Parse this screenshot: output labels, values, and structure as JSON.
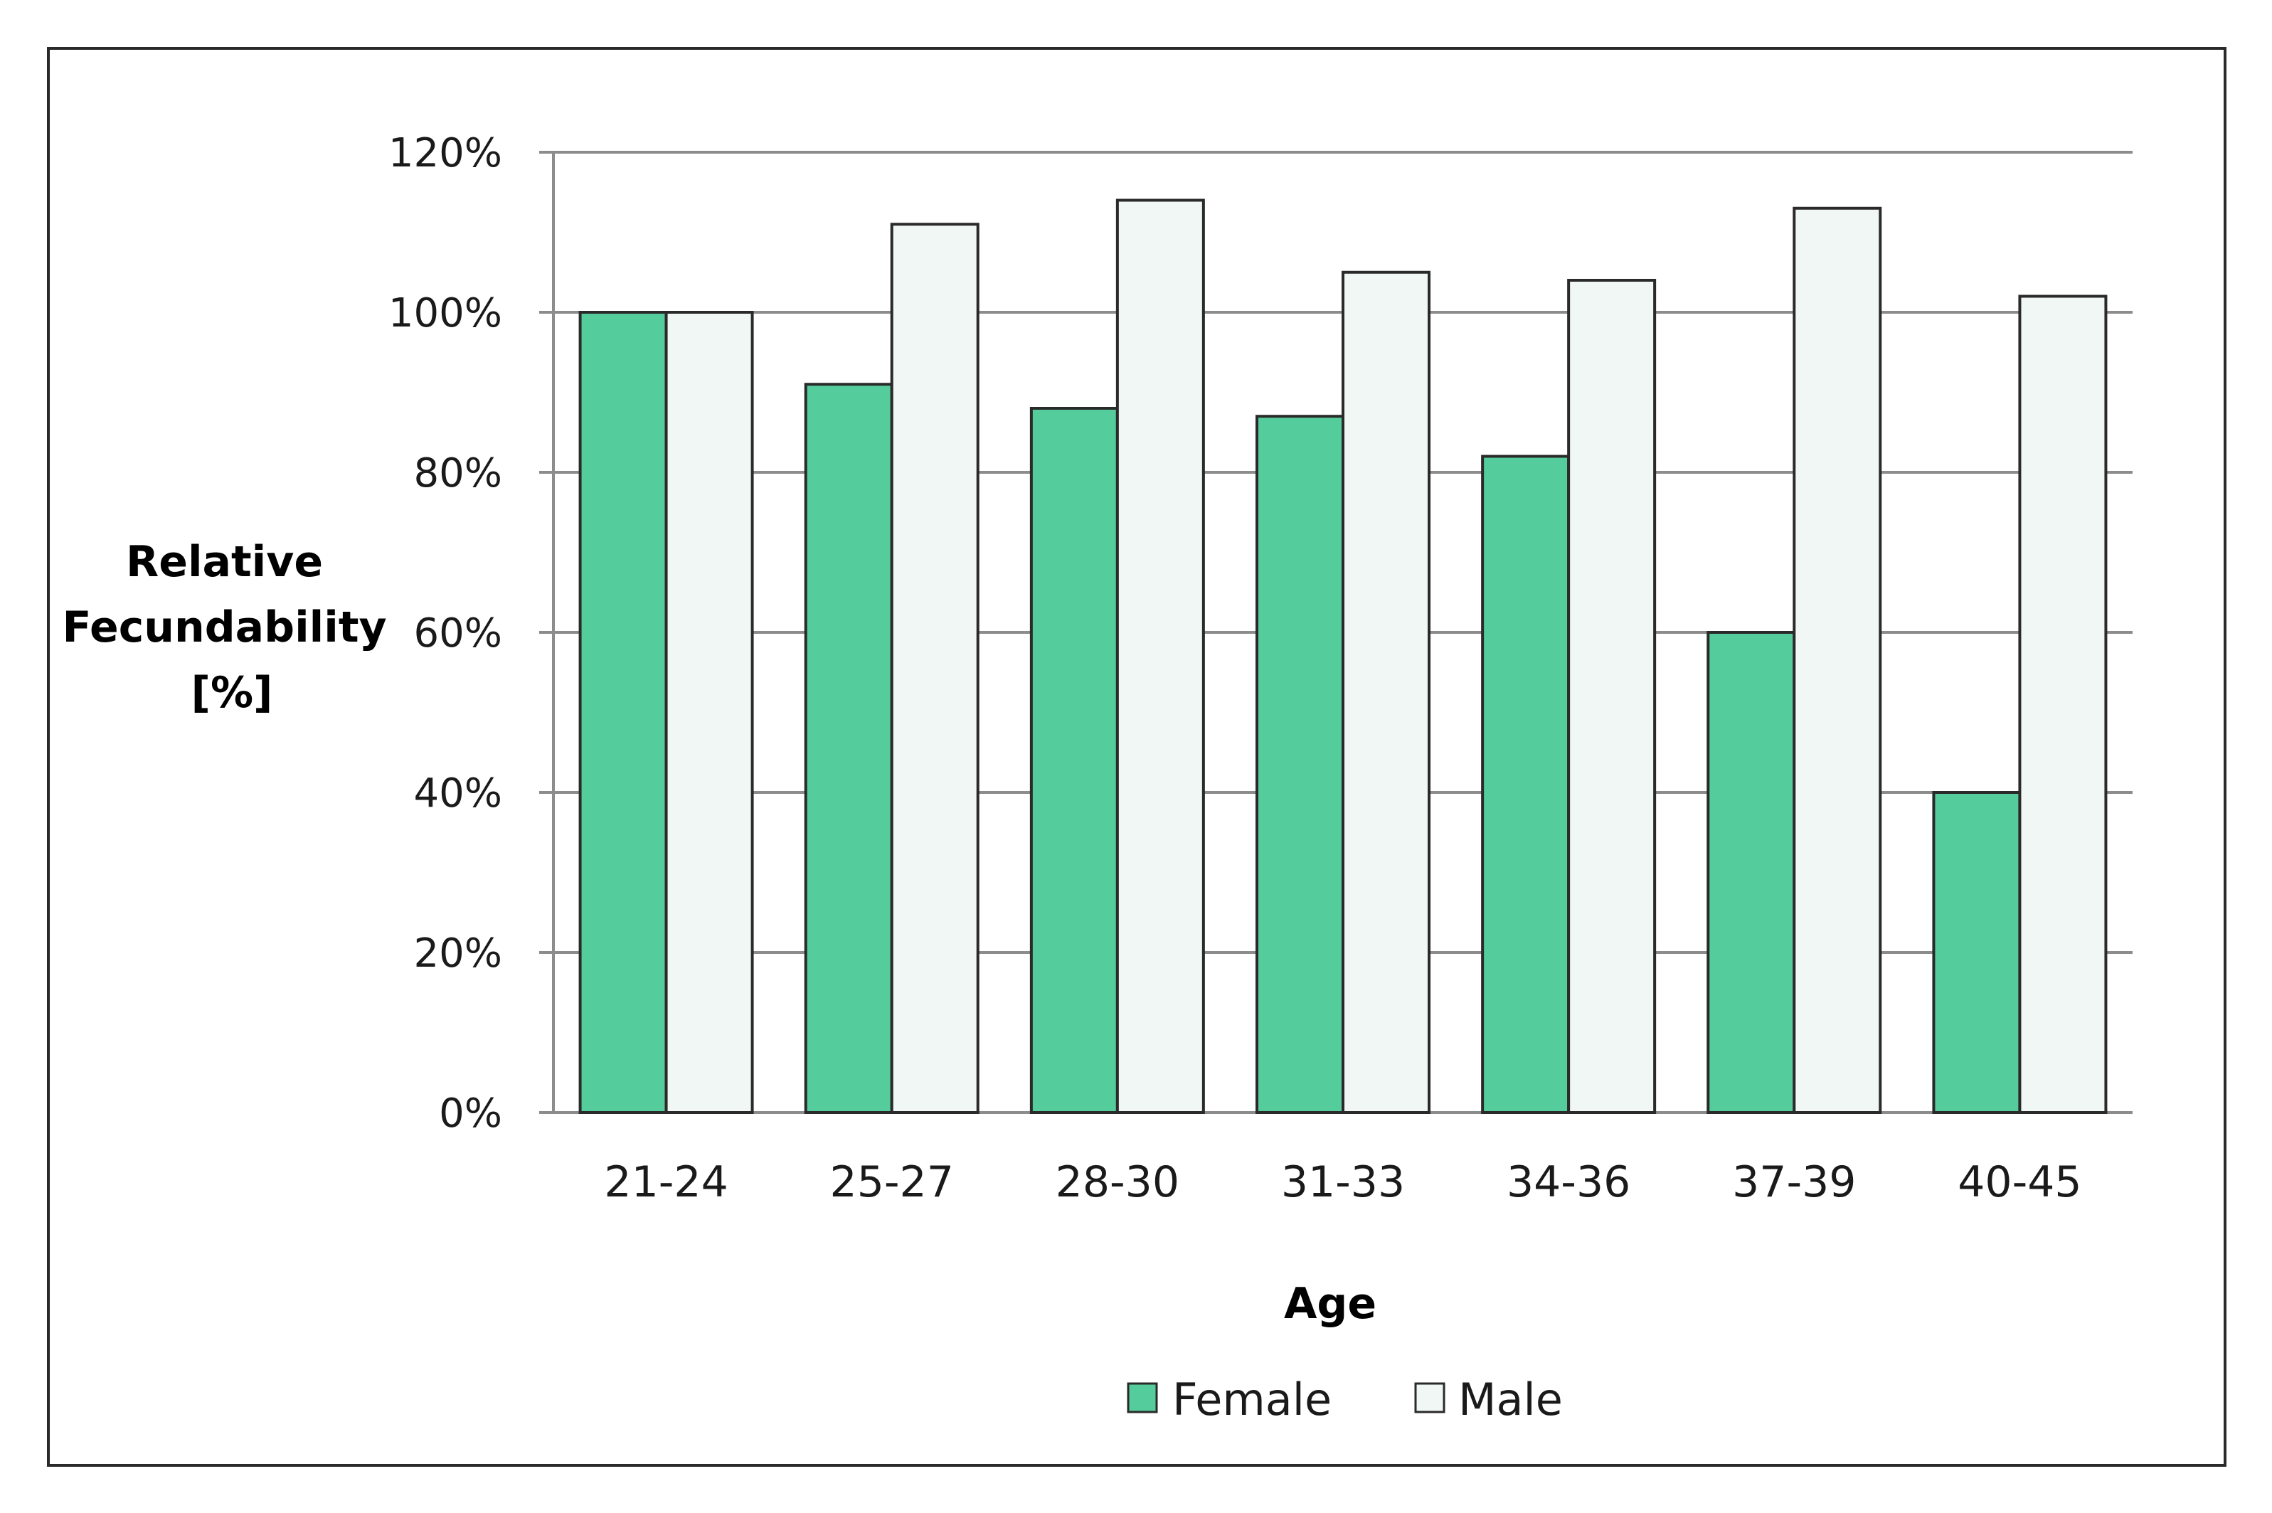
{
  "chart_data": {
    "type": "bar",
    "categories": [
      "21-24",
      "25-27",
      "28-30",
      "31-33",
      "34-36",
      "37-39",
      "40-45"
    ],
    "series": [
      {
        "name": "Female",
        "values": [
          100,
          91,
          88,
          87,
          82,
          60,
          40
        ],
        "color": "#55cc9b"
      },
      {
        "name": "Male",
        "values": [
          100,
          111,
          114,
          105,
          104,
          113,
          102
        ],
        "color": "#f1f7f4"
      }
    ],
    "title": "",
    "xlabel": "Age",
    "ylabel_lines": [
      "Relative",
      "Fecundability",
      "[%]"
    ],
    "ylim": [
      0,
      120
    ],
    "yticks": [
      0,
      20,
      40,
      60,
      80,
      100,
      120
    ],
    "ytick_labels": [
      "0%",
      "20%",
      "40%",
      "60%",
      "80%",
      "100%",
      "120%"
    ],
    "grid": true,
    "legend_position": "bottom-center",
    "bar_outline_color": "#2a2a2a",
    "grid_color": "#8c8c8c"
  }
}
